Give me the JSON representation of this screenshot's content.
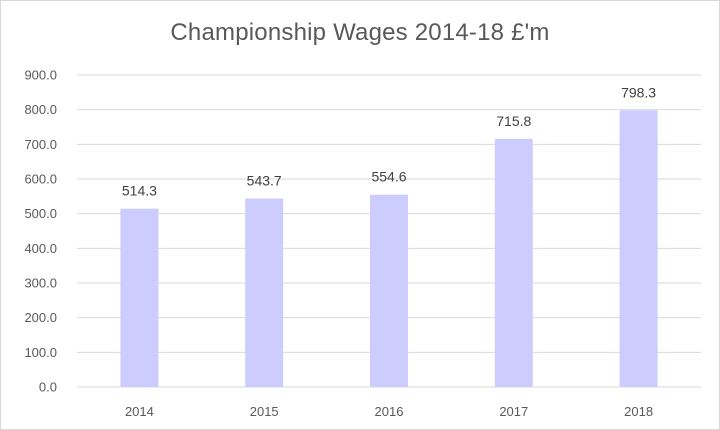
{
  "chart_data": {
    "type": "bar",
    "title": "Championship Wages 2014-18 £'m",
    "categories": [
      "2014",
      "2015",
      "2016",
      "2017",
      "2018"
    ],
    "values": [
      514.3,
      543.7,
      554.6,
      715.8,
      798.3
    ],
    "value_labels": [
      "514.3",
      "543.7",
      "554.6",
      "715.8",
      "798.3"
    ],
    "ylim": [
      0,
      900
    ],
    "yticks": [
      "0.0",
      "100.0",
      "200.0",
      "300.0",
      "400.0",
      "500.0",
      "600.0",
      "700.0",
      "800.0",
      "900.0"
    ],
    "xlabel": "",
    "ylabel": "",
    "grid": true,
    "legend": "none",
    "bar_color": "#ccccff",
    "grid_color": "#d9d9d9"
  }
}
